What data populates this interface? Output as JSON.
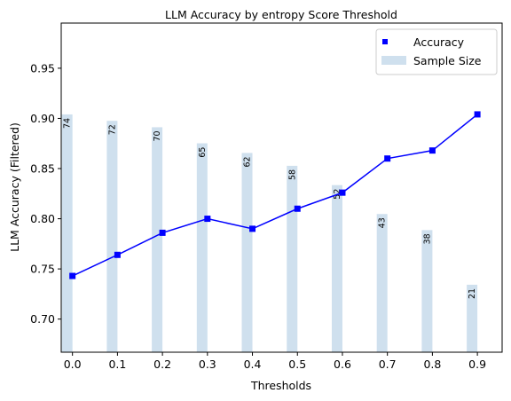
{
  "chart_data": {
    "type": "bar",
    "title": "LLM Accuracy by entropy Score Threshold",
    "xlabel": "Thresholds",
    "ylabel": "LLM Accuracy (Filtered)",
    "x": [
      0.0,
      0.1,
      0.2,
      0.3,
      0.4,
      0.5,
      0.6,
      0.7,
      0.8,
      0.9
    ],
    "x_tick_labels": [
      "0.0",
      "0.1",
      "0.2",
      "0.3",
      "0.4",
      "0.5",
      "0.6",
      "0.7",
      "0.8",
      "0.9"
    ],
    "xlim": [
      -0.025,
      0.955
    ],
    "ylim": [
      0.667,
      0.995
    ],
    "y_ticks": [
      0.7,
      0.75,
      0.8,
      0.85,
      0.9,
      0.95
    ],
    "y_tick_labels": [
      "0.70",
      "0.75",
      "0.80",
      "0.85",
      "0.90",
      "0.95"
    ],
    "series": [
      {
        "name": "Accuracy",
        "type": "line",
        "marker": "square",
        "color": "#0000ff",
        "values": [
          0.743,
          0.764,
          0.786,
          0.8,
          0.79,
          0.81,
          0.826,
          0.86,
          0.868,
          0.904
        ]
      },
      {
        "name": "Sample Size",
        "type": "bar",
        "color": "#cfe0ee",
        "values": [
          74,
          72,
          70,
          65,
          62,
          58,
          52,
          43,
          38,
          21
        ],
        "bar_labels": [
          "74",
          "72",
          "70",
          "65",
          "62",
          "58",
          "52",
          "43",
          "38",
          "21"
        ]
      }
    ],
    "legend": {
      "placement": "top-right",
      "entries": [
        "Accuracy",
        "Sample Size"
      ]
    },
    "grid": false
  }
}
